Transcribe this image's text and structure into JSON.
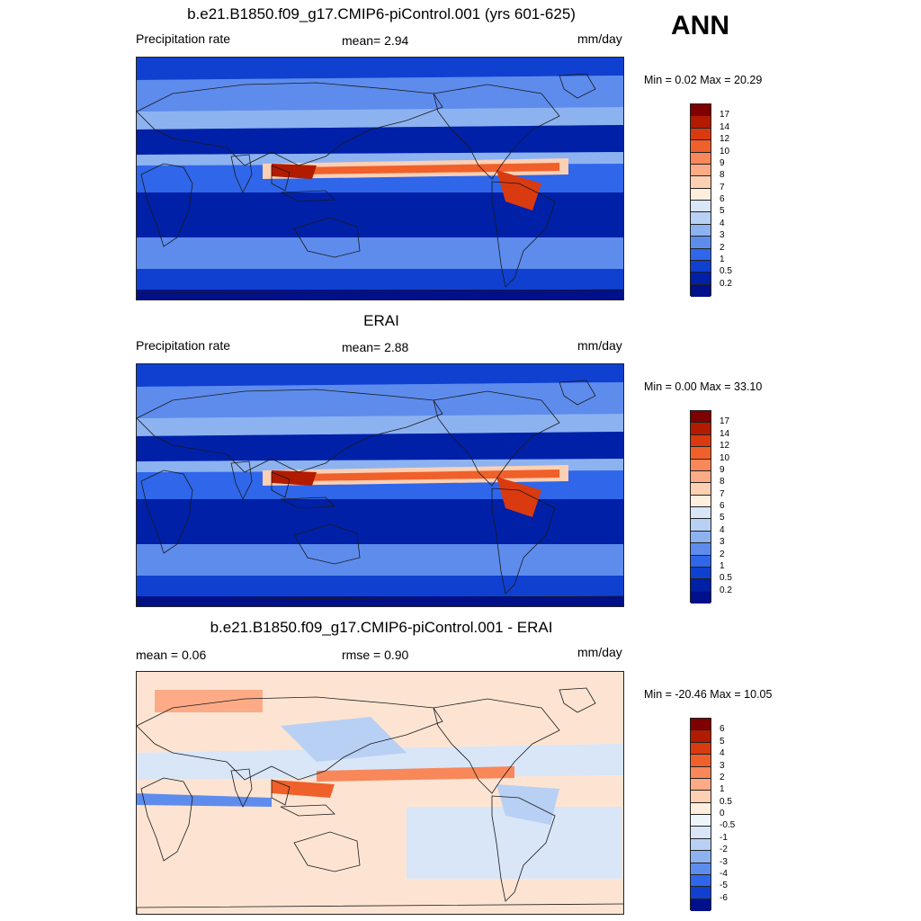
{
  "season": "ANN",
  "coast_color": "#1a1a1a",
  "panels": [
    {
      "title": "b.e21.B1850.f09_g17.CMIP6-piControl.001 (yrs 601-625)",
      "left_label": "Precipitation rate",
      "center_label": "mean=   2.94",
      "units": "mm/day",
      "minmax": "Min =   0.02 Max =  20.29",
      "colorbar_ticks": [
        "17",
        "14",
        "12",
        "10",
        "9",
        "8",
        "7",
        "6",
        "5",
        "4",
        "3",
        "2",
        "1",
        "0.5",
        "0.2"
      ],
      "colorbar_colors": [
        "#7f0000",
        "#b21b00",
        "#d93a10",
        "#f0602a",
        "#f8875a",
        "#fcab86",
        "#fdd0b4",
        "#fdeede",
        "#d8e6f8",
        "#b8d0f4",
        "#8db2f0",
        "#5e8ced",
        "#2f66ea",
        "#1040d0",
        "#0020a8",
        "#00108a"
      ]
    },
    {
      "title": "ERAI",
      "left_label": "Precipitation rate",
      "center_label": "mean=   2.88",
      "units": "mm/day",
      "minmax": "Min =   0.00 Max =  33.10",
      "colorbar_ticks": [
        "17",
        "14",
        "12",
        "10",
        "9",
        "8",
        "7",
        "6",
        "5",
        "4",
        "3",
        "2",
        "1",
        "0.5",
        "0.2"
      ],
      "colorbar_colors": [
        "#7f0000",
        "#b21b00",
        "#d93a10",
        "#f0602a",
        "#f8875a",
        "#fcab86",
        "#fdd0b4",
        "#fdeede",
        "#d8e6f8",
        "#b8d0f4",
        "#8db2f0",
        "#5e8ced",
        "#2f66ea",
        "#1040d0",
        "#0020a8",
        "#00108a"
      ]
    },
    {
      "title": "b.e21.B1850.f09_g17.CMIP6-piControl.001 - ERAI",
      "left_label": "mean =   0.06",
      "center_label": "rmse =   0.90",
      "units": "mm/day",
      "minmax": "Min = -20.46 Max =  10.05",
      "colorbar_ticks": [
        "6",
        "5",
        "4",
        "3",
        "2",
        "1",
        "0.5",
        "0",
        "-0.5",
        "-1",
        "-2",
        "-3",
        "-4",
        "-5",
        "-6"
      ],
      "colorbar_colors": [
        "#7f0000",
        "#b21b00",
        "#d93a10",
        "#f0602a",
        "#f8875a",
        "#fcab86",
        "#fdd0b4",
        "#fdeede",
        "#eef4fc",
        "#d8e6f8",
        "#b8d0f4",
        "#8db2f0",
        "#5e8ced",
        "#2f66ea",
        "#1040d0",
        "#00108a"
      ]
    }
  ]
}
